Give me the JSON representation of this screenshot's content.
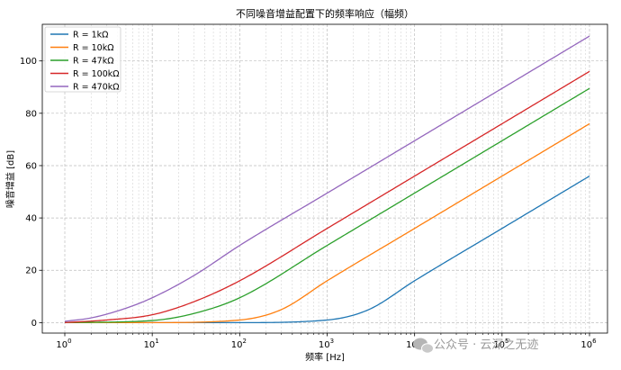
{
  "chart_data": {
    "type": "line",
    "title": "不同噪音增益配置下的频率响应（幅频）",
    "xlabel": "频率 [Hz]",
    "ylabel": "噪音增益 [dB]",
    "xscale": "log",
    "xlim": [
      1,
      1000000
    ],
    "ylim": [
      -4,
      114
    ],
    "x_ticks": [
      1,
      10,
      100,
      1000,
      10000,
      100000,
      1000000
    ],
    "x_tick_labels": [
      {
        "base": "10",
        "exp": "0"
      },
      {
        "base": "10",
        "exp": "1"
      },
      {
        "base": "10",
        "exp": "2"
      },
      {
        "base": "10",
        "exp": "3"
      },
      {
        "base": "10",
        "exp": "4"
      },
      {
        "base": "10",
        "exp": "5"
      },
      {
        "base": "10",
        "exp": "6"
      }
    ],
    "y_ticks": [
      0,
      20,
      40,
      60,
      80,
      100
    ],
    "y_tick_labels": [
      "0",
      "20",
      "40",
      "60",
      "80",
      "100"
    ],
    "grid": true,
    "legend_position": "top-left",
    "series": [
      {
        "name": "R = 1kΩ",
        "color": "#1f77b4",
        "x": [
          1,
          10,
          100,
          1000,
          3000,
          10000,
          100000,
          1000000
        ],
        "values": [
          0.0,
          0.0,
          0.0,
          1.0,
          5.0,
          16.0,
          36.0,
          56.0
        ]
      },
      {
        "name": "R = 10kΩ",
        "color": "#ff7f0e",
        "x": [
          1,
          10,
          100,
          300,
          1000,
          10000,
          100000,
          1000000
        ],
        "values": [
          0.0,
          0.0,
          1.0,
          5.0,
          16.0,
          36.0,
          56.0,
          76.0
        ]
      },
      {
        "name": "R = 47kΩ",
        "color": "#2ca02c",
        "x": [
          1,
          10,
          30,
          100,
          1000,
          10000,
          100000,
          1000000
        ],
        "values": [
          0.0,
          0.8,
          3.5,
          9.5,
          29.5,
          49.5,
          69.5,
          89.5
        ]
      },
      {
        "name": "R = 100kΩ",
        "color": "#d62728",
        "x": [
          1,
          3,
          10,
          30,
          100,
          1000,
          10000,
          100000,
          1000000
        ],
        "values": [
          0.0,
          1.0,
          3.0,
          8.0,
          16.0,
          36.0,
          56.0,
          76.0,
          96.0
        ]
      },
      {
        "name": "R = 470kΩ",
        "color": "#9467bd",
        "x": [
          1,
          2,
          5,
          10,
          30,
          100,
          1000,
          10000,
          100000,
          1000000
        ],
        "values": [
          0.5,
          1.8,
          5.5,
          9.5,
          18.0,
          29.5,
          49.5,
          69.5,
          89.5,
          109.5
        ]
      }
    ]
  },
  "watermark": {
    "text": "公众号 · 云深之无迹",
    "icon": "wechat-icon"
  }
}
